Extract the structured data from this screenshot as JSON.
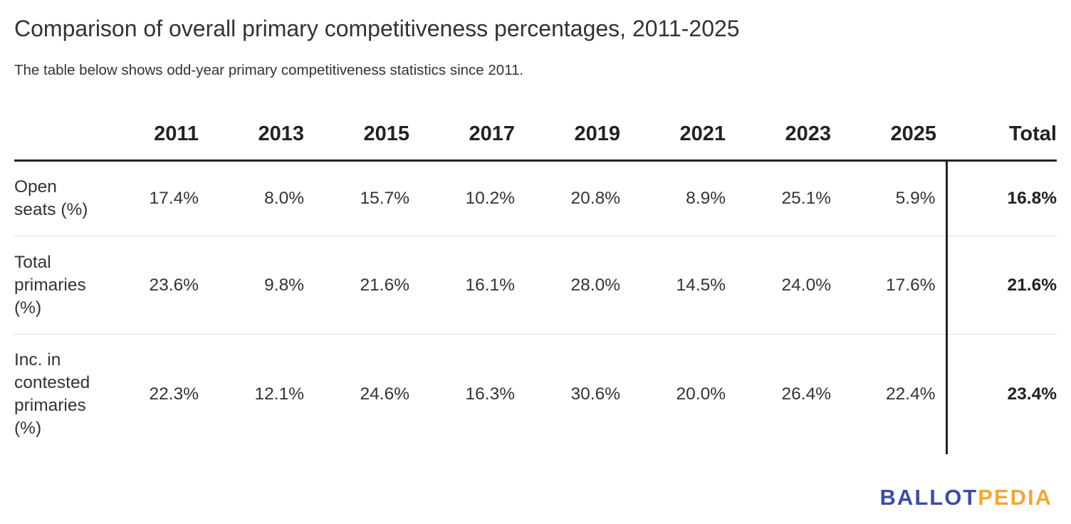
{
  "title": "Comparison of overall primary competitiveness percentages, 2011-2025",
  "subtitle": "The table below shows odd-year primary competitiveness statistics since 2011.",
  "chart_data": {
    "type": "table",
    "columns": [
      "",
      "2011",
      "2013",
      "2015",
      "2017",
      "2019",
      "2021",
      "2023",
      "2025",
      "Total"
    ],
    "rows": [
      {
        "label": "Open seats (%)",
        "values": [
          "17.4%",
          "8.0%",
          "15.7%",
          "10.2%",
          "20.8%",
          "8.9%",
          "25.1%",
          "5.9%"
        ],
        "total": "16.8%"
      },
      {
        "label": "Total primaries (%)",
        "values": [
          "23.6%",
          "9.8%",
          "21.6%",
          "16.1%",
          "28.0%",
          "14.5%",
          "24.0%",
          "17.6%"
        ],
        "total": "21.6%"
      },
      {
        "label": "Inc. in contested primaries (%)",
        "values": [
          "22.3%",
          "12.1%",
          "24.6%",
          "16.3%",
          "30.6%",
          "20.0%",
          "26.4%",
          "22.4%"
        ],
        "total": "23.4%"
      }
    ]
  },
  "logo": {
    "part1": "BALLOT",
    "part2": "PEDIA",
    "color1": "#3b4ea3",
    "color2": "#f2a833"
  }
}
